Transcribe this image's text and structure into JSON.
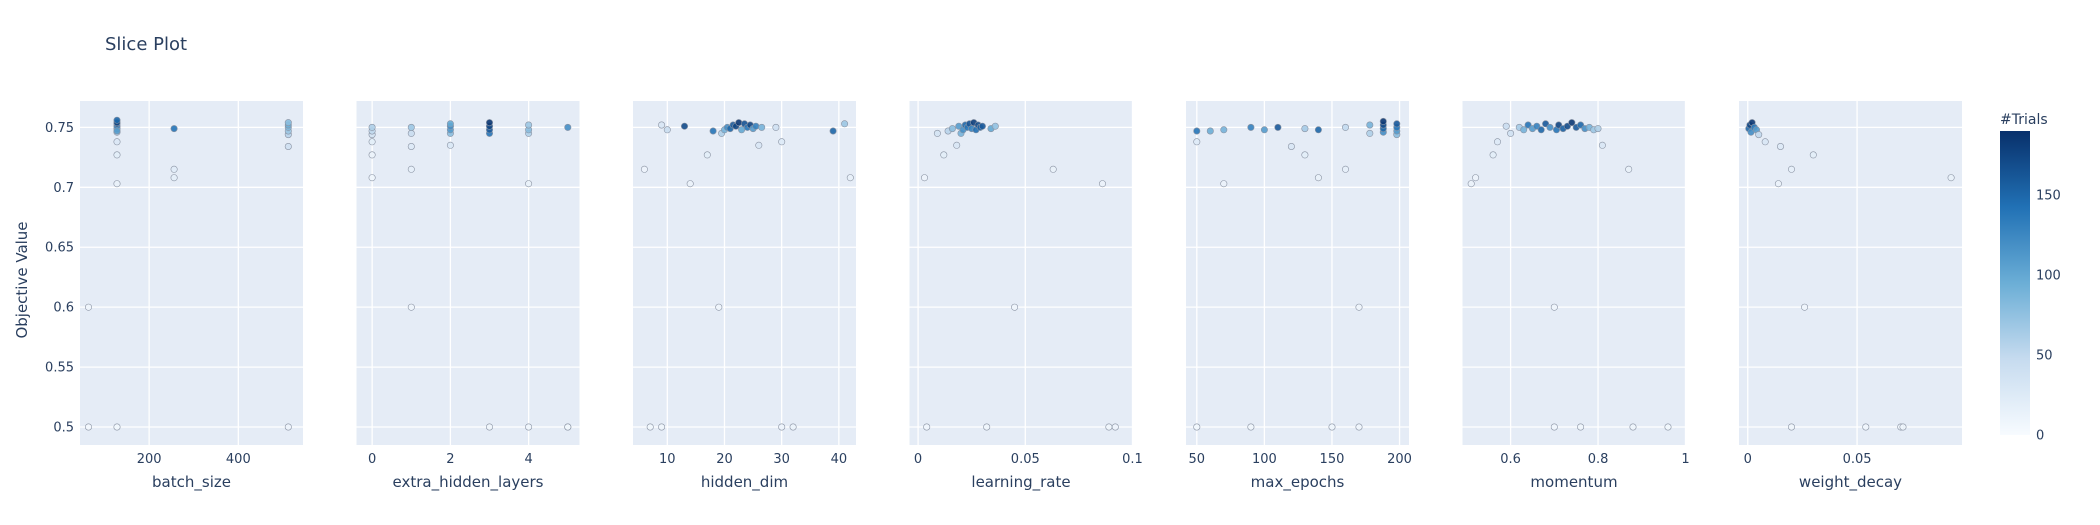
{
  "chart_data": {
    "type": "scatter",
    "title": "Slice Plot",
    "ylabel": "Objective Value",
    "ylim": [
      0.485,
      0.772
    ],
    "yticks": [
      0.5,
      0.55,
      0.6,
      0.65,
      0.7,
      0.75
    ],
    "ytick_labels": [
      "0.5",
      "0.55",
      "0.6",
      "0.65",
      "0.7",
      "0.75"
    ],
    "colorbar": {
      "title": "#Trials",
      "range": [
        0,
        190
      ],
      "ticks": [
        0,
        50,
        100,
        150
      ],
      "tick_labels": [
        "0",
        "50",
        "100",
        "150"
      ],
      "colorscale": [
        "#f7fbff",
        "#c6dbef",
        "#6baed6",
        "#2171b5",
        "#08306b"
      ]
    },
    "panels": [
      {
        "xlabel": "batch_size",
        "xlim": [
          45,
          545
        ],
        "xticks": [
          200,
          400
        ],
        "xtick_labels": [
          "200",
          "400"
        ],
        "points": [
          [
            64,
            0.5,
            4
          ],
          [
            64,
            0.6,
            9
          ],
          [
            128,
            0.5,
            6
          ],
          [
            128,
            0.703,
            14
          ],
          [
            128,
            0.727,
            20
          ],
          [
            128,
            0.738,
            28
          ],
          [
            128,
            0.746,
            60
          ],
          [
            128,
            0.749,
            95
          ],
          [
            128,
            0.751,
            130
          ],
          [
            128,
            0.753,
            165
          ],
          [
            128,
            0.754,
            175
          ],
          [
            128,
            0.756,
            150
          ],
          [
            128,
            0.747,
            110
          ],
          [
            256,
            0.708,
            18
          ],
          [
            256,
            0.715,
            22
          ],
          [
            256,
            0.749,
            140
          ],
          [
            512,
            0.5,
            10
          ],
          [
            512,
            0.734,
            40
          ],
          [
            512,
            0.744,
            55
          ],
          [
            512,
            0.747,
            70
          ],
          [
            512,
            0.75,
            85
          ],
          [
            512,
            0.752,
            95
          ],
          [
            512,
            0.754,
            80
          ]
        ]
      },
      {
        "xlabel": "extra_hidden_layers",
        "xlim": [
          -0.4,
          5.3
        ],
        "xticks": [
          0,
          2,
          4
        ],
        "xtick_labels": [
          "0",
          "2",
          "4"
        ],
        "points": [
          [
            0,
            0.708,
            8
          ],
          [
            0,
            0.727,
            12
          ],
          [
            0,
            0.738,
            20
          ],
          [
            0,
            0.744,
            35
          ],
          [
            0,
            0.747,
            50
          ],
          [
            0,
            0.75,
            60
          ],
          [
            1,
            0.6,
            9
          ],
          [
            1,
            0.715,
            16
          ],
          [
            1,
            0.734,
            25
          ],
          [
            1,
            0.745,
            45
          ],
          [
            1,
            0.75,
            70
          ],
          [
            2,
            0.735,
            30
          ],
          [
            2,
            0.745,
            80
          ],
          [
            2,
            0.748,
            110
          ],
          [
            2,
            0.751,
            120
          ],
          [
            2,
            0.753,
            100
          ],
          [
            3,
            0.5,
            8
          ],
          [
            3,
            0.745,
            140
          ],
          [
            3,
            0.748,
            160
          ],
          [
            3,
            0.751,
            175
          ],
          [
            3,
            0.754,
            185
          ],
          [
            4,
            0.5,
            7
          ],
          [
            4,
            0.703,
            14
          ],
          [
            4,
            0.745,
            60
          ],
          [
            4,
            0.748,
            80
          ],
          [
            4,
            0.752,
            70
          ],
          [
            5,
            0.5,
            6
          ],
          [
            5,
            0.5,
            8
          ],
          [
            5,
            0.75,
            120
          ]
        ]
      },
      {
        "xlabel": "hidden_dim",
        "xlim": [
          4,
          43
        ],
        "xticks": [
          10,
          20,
          30,
          40
        ],
        "xtick_labels": [
          "10",
          "20",
          "30",
          "40"
        ],
        "points": [
          [
            6,
            0.715,
            10
          ],
          [
            7,
            0.5,
            6
          ],
          [
            9,
            0.5,
            8
          ],
          [
            9,
            0.752,
            30
          ],
          [
            10,
            0.748,
            45
          ],
          [
            13,
            0.751,
            170
          ],
          [
            14,
            0.703,
            12
          ],
          [
            17,
            0.727,
            20
          ],
          [
            18,
            0.747,
            140
          ],
          [
            19,
            0.6,
            9
          ],
          [
            19.5,
            0.745,
            60
          ],
          [
            20,
            0.748,
            90
          ],
          [
            20.5,
            0.75,
            120
          ],
          [
            21,
            0.749,
            150
          ],
          [
            21.5,
            0.752,
            160
          ],
          [
            22,
            0.751,
            175
          ],
          [
            22.5,
            0.754,
            185
          ],
          [
            23,
            0.748,
            100
          ],
          [
            23.5,
            0.753,
            165
          ],
          [
            24,
            0.75,
            140
          ],
          [
            24.5,
            0.752,
            175
          ],
          [
            25,
            0.749,
            110
          ],
          [
            25.5,
            0.751,
            130
          ],
          [
            26,
            0.735,
            30
          ],
          [
            26.5,
            0.75,
            90
          ],
          [
            29,
            0.75,
            40
          ],
          [
            30,
            0.5,
            10
          ],
          [
            30,
            0.738,
            25
          ],
          [
            32,
            0.5,
            12
          ],
          [
            39,
            0.747,
            150
          ],
          [
            41,
            0.753,
            70
          ],
          [
            42,
            0.708,
            15
          ]
        ]
      },
      {
        "xlabel": "learning_rate",
        "xlim": [
          -0.004,
          0.1
        ],
        "xticks": [
          0,
          0.05,
          0.1
        ],
        "xtick_labels": [
          "0",
          "0.05",
          "0.1"
        ],
        "points": [
          [
            0.003,
            0.708,
            10
          ],
          [
            0.004,
            0.5,
            7
          ],
          [
            0.009,
            0.745,
            35
          ],
          [
            0.012,
            0.727,
            20
          ],
          [
            0.014,
            0.747,
            55
          ],
          [
            0.016,
            0.749,
            80
          ],
          [
            0.018,
            0.735,
            30
          ],
          [
            0.019,
            0.751,
            110
          ],
          [
            0.02,
            0.745,
            90
          ],
          [
            0.021,
            0.748,
            120
          ],
          [
            0.022,
            0.752,
            150
          ],
          [
            0.023,
            0.75,
            140
          ],
          [
            0.024,
            0.753,
            165
          ],
          [
            0.025,
            0.749,
            130
          ],
          [
            0.026,
            0.754,
            180
          ],
          [
            0.027,
            0.748,
            145
          ],
          [
            0.028,
            0.752,
            170
          ],
          [
            0.029,
            0.75,
            155
          ],
          [
            0.03,
            0.751,
            160
          ],
          [
            0.032,
            0.5,
            9
          ],
          [
            0.034,
            0.749,
            100
          ],
          [
            0.036,
            0.751,
            75
          ],
          [
            0.045,
            0.6,
            9
          ],
          [
            0.063,
            0.715,
            14
          ],
          [
            0.086,
            0.703,
            12
          ],
          [
            0.089,
            0.5,
            8
          ],
          [
            0.092,
            0.5,
            10
          ]
        ]
      },
      {
        "xlabel": "max_epochs",
        "xlim": [
          42,
          207
        ],
        "xticks": [
          50,
          100,
          150,
          200
        ],
        "xtick_labels": [
          "50",
          "100",
          "150",
          "200"
        ],
        "points": [
          [
            50,
            0.5,
            6
          ],
          [
            50,
            0.738,
            25
          ],
          [
            50,
            0.747,
            140
          ],
          [
            60,
            0.747,
            95
          ],
          [
            70,
            0.703,
            12
          ],
          [
            70,
            0.748,
            90
          ],
          [
            90,
            0.5,
            8
          ],
          [
            90,
            0.75,
            130
          ],
          [
            100,
            0.748,
            110
          ],
          [
            110,
            0.75,
            160
          ],
          [
            120,
            0.734,
            30
          ],
          [
            130,
            0.727,
            20
          ],
          [
            130,
            0.749,
            65
          ],
          [
            140,
            0.708,
            14
          ],
          [
            140,
            0.748,
            150
          ],
          [
            150,
            0.5,
            9
          ],
          [
            160,
            0.715,
            16
          ],
          [
            160,
            0.75,
            50
          ],
          [
            170,
            0.5,
            7
          ],
          [
            170,
            0.6,
            9
          ],
          [
            178,
            0.745,
            60
          ],
          [
            178,
            0.752,
            90
          ],
          [
            188,
            0.746,
            120
          ],
          [
            188,
            0.749,
            150
          ],
          [
            188,
            0.752,
            170
          ],
          [
            188,
            0.755,
            185
          ],
          [
            198,
            0.744,
            80
          ],
          [
            198,
            0.747,
            110
          ],
          [
            198,
            0.75,
            140
          ],
          [
            198,
            0.753,
            160
          ]
        ]
      },
      {
        "xlabel": "momentum",
        "xlim": [
          0.49,
          1.0
        ],
        "xticks": [
          0.6,
          0.8,
          1
        ],
        "xtick_labels": [
          "0.6",
          "0.8",
          "1"
        ],
        "points": [
          [
            0.51,
            0.703,
            12
          ],
          [
            0.52,
            0.708,
            10
          ],
          [
            0.56,
            0.727,
            20
          ],
          [
            0.57,
            0.738,
            25
          ],
          [
            0.59,
            0.751,
            45
          ],
          [
            0.6,
            0.745,
            40
          ],
          [
            0.62,
            0.75,
            65
          ],
          [
            0.63,
            0.748,
            90
          ],
          [
            0.64,
            0.752,
            140
          ],
          [
            0.65,
            0.749,
            110
          ],
          [
            0.66,
            0.751,
            130
          ],
          [
            0.67,
            0.748,
            150
          ],
          [
            0.68,
            0.753,
            160
          ],
          [
            0.69,
            0.75,
            120
          ],
          [
            0.7,
            0.6,
            9
          ],
          [
            0.7,
            0.5,
            7
          ],
          [
            0.705,
            0.748,
            140
          ],
          [
            0.71,
            0.752,
            175
          ],
          [
            0.72,
            0.749,
            155
          ],
          [
            0.73,
            0.751,
            170
          ],
          [
            0.74,
            0.754,
            185
          ],
          [
            0.75,
            0.75,
            160
          ],
          [
            0.76,
            0.752,
            150
          ],
          [
            0.76,
            0.5,
            8
          ],
          [
            0.77,
            0.749,
            120
          ],
          [
            0.78,
            0.75,
            90
          ],
          [
            0.79,
            0.748,
            70
          ],
          [
            0.8,
            0.749,
            60
          ],
          [
            0.81,
            0.735,
            30
          ],
          [
            0.87,
            0.715,
            14
          ],
          [
            0.88,
            0.5,
            9
          ],
          [
            0.96,
            0.5,
            6
          ]
        ]
      },
      {
        "xlabel": "weight_decay",
        "xlim": [
          -0.004,
          0.098
        ],
        "xticks": [
          0,
          0.05
        ],
        "xtick_labels": [
          "0",
          "0.05"
        ],
        "points": [
          [
            0.0005,
            0.749,
            150
          ],
          [
            0.001,
            0.752,
            175
          ],
          [
            0.0015,
            0.746,
            120
          ],
          [
            0.002,
            0.754,
            185
          ],
          [
            0.003,
            0.75,
            140
          ],
          [
            0.004,
            0.748,
            110
          ],
          [
            0.005,
            0.744,
            50
          ],
          [
            0.008,
            0.738,
            30
          ],
          [
            0.014,
            0.703,
            12
          ],
          [
            0.015,
            0.734,
            25
          ],
          [
            0.02,
            0.5,
            8
          ],
          [
            0.02,
            0.715,
            16
          ],
          [
            0.026,
            0.6,
            9
          ],
          [
            0.03,
            0.727,
            20
          ],
          [
            0.054,
            0.5,
            7
          ],
          [
            0.07,
            0.5,
            6
          ],
          [
            0.071,
            0.5,
            9
          ],
          [
            0.093,
            0.708,
            14
          ]
        ]
      }
    ]
  }
}
